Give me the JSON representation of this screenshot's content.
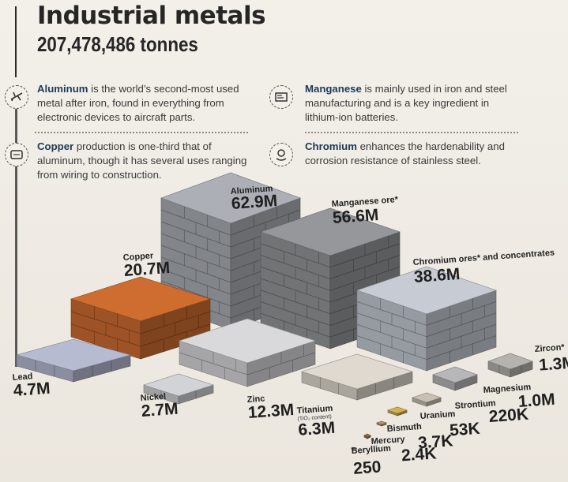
{
  "header": {
    "title": "Industrial metals",
    "total": "207,478,486 tonnes"
  },
  "notes": [
    {
      "bold": "Aluminum",
      "text": " is the world’s second-most used metal after iron, found in everything from electronic devices to aircraft parts.",
      "icon": "airplane-icon"
    },
    {
      "bold": "Manganese",
      "text": " is mainly used in iron and steel manufacturing and is a key ingredient in lithium-ion batteries.",
      "icon": "battery-icon"
    },
    {
      "bold": "Copper",
      "text": " production is one-third that of aluminum, though it has several uses ranging from wiring to construction.",
      "icon": "wire-icon"
    },
    {
      "bold": "Chromium",
      "text": " enhances the hardenability and corrosion resistance of stainless steel.",
      "icon": "hand-gear-icon"
    }
  ],
  "colors": {
    "aluminum": "#9fa2a8",
    "manganese": "#8a8c8f",
    "chromium": "#b7bcc4",
    "copper": "#c0652d",
    "lead": "#a9adc2",
    "zinc": "#c9c9cc",
    "nickel": "#c2c3c6",
    "titanium": "#cfc9c0",
    "accent_blue": "#1e3a57"
  },
  "chart_data": {
    "type": "bar",
    "title": "Industrial metals",
    "subtitle": "207,478,486 tonnes",
    "unit": "tonnes",
    "categories": [
      "Aluminum",
      "Manganese ore",
      "Chromium ores and concentrates",
      "Copper",
      "Zinc",
      "Titanium",
      "Lead",
      "Nickel",
      "Zircon",
      "Magnesium",
      "Strontium",
      "Uranium",
      "Bismuth",
      "Mercury",
      "Beryllium"
    ],
    "values": [
      62900000,
      56600000,
      38600000,
      20700000,
      12300000,
      6300000,
      4700000,
      2700000,
      1300000,
      1000000,
      220000,
      53000,
      3700,
      2400,
      250
    ],
    "labels": [
      {
        "name": "Aluminum",
        "value": "62.9M"
      },
      {
        "name": "Manganese ore*",
        "value": "56.6M"
      },
      {
        "name": "Chromium ores* and concentrates",
        "value": "38.6M"
      },
      {
        "name": "Copper",
        "value": "20.7M"
      },
      {
        "name": "Zinc",
        "value": "12.3M"
      },
      {
        "name": "Titanium",
        "sub": "(TiO₂ content)",
        "value": "6.3M"
      },
      {
        "name": "Lead",
        "value": "4.7M"
      },
      {
        "name": "Nickel",
        "value": "2.7M"
      },
      {
        "name": "Zircon*",
        "value": "1.3M"
      },
      {
        "name": "Magnesium",
        "value": "1.0M"
      },
      {
        "name": "Strontium",
        "value": "220K"
      },
      {
        "name": "Uranium",
        "value": "53K"
      },
      {
        "name": "Bismuth",
        "value": "3.7K"
      },
      {
        "name": "Mercury",
        "value": "2.4K"
      },
      {
        "name": "Beryllium",
        "value": "250"
      }
    ]
  }
}
